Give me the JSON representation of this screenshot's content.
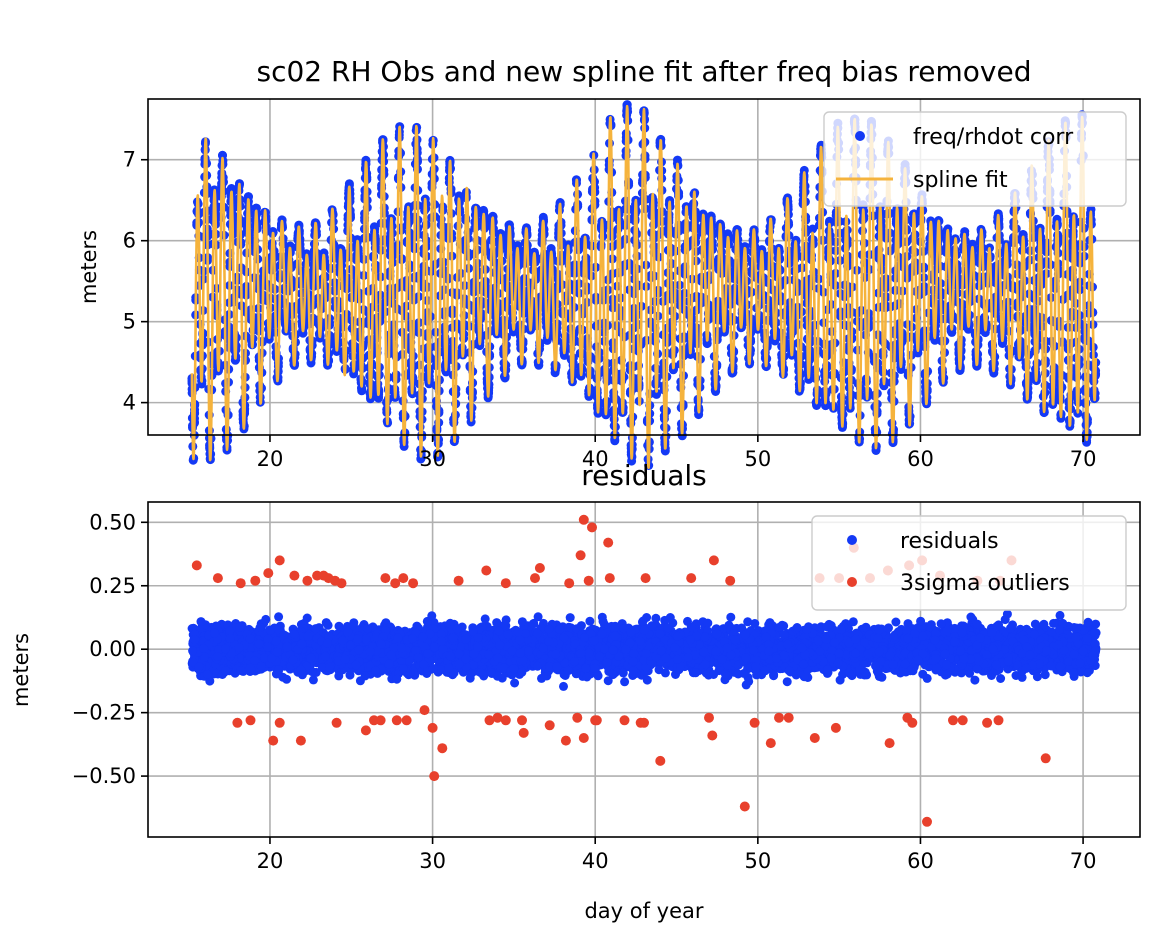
{
  "colors": {
    "obs": "#1439f5",
    "spline": "#f5b33c",
    "residuals": "#1439f5",
    "outliers": "#e8402c",
    "grid": "#b0b0b0"
  },
  "chart_data": [
    {
      "type": "scatter",
      "title": "sc02 RH Obs and new spline fit after freq bias removed",
      "xlabel": "",
      "ylabel": "meters",
      "xlim": [
        12.5,
        73.5
      ],
      "ylim": [
        3.6,
        7.75
      ],
      "xticks": [
        "20",
        "30",
        "40",
        "50",
        "60",
        "70"
      ],
      "yticks": [
        "4",
        "5",
        "6",
        "7"
      ],
      "grid": true,
      "legend_position": "top-right",
      "series": [
        {
          "name": "freq/rhdot corr",
          "kind": "points",
          "x_range": [
            15.2,
            70.8
          ],
          "y_range": [
            3.8,
            7.55
          ],
          "approx_count": 4500
        },
        {
          "name": "spline fit",
          "kind": "line",
          "x_range": [
            15.2,
            70.8
          ],
          "y_range": [
            4.05,
            7.45
          ]
        }
      ]
    },
    {
      "type": "scatter",
      "title": "residuals",
      "xlabel": "day of year",
      "ylabel": "meters",
      "xlim": [
        12.5,
        73.5
      ],
      "ylim": [
        -0.74,
        0.58
      ],
      "xticks": [
        "20",
        "30",
        "40",
        "50",
        "60",
        "70"
      ],
      "yticks": [
        "0.50",
        "0.25",
        "0.00",
        "−0.25",
        "−0.50"
      ],
      "grid": true,
      "legend_position": "top-right",
      "series": [
        {
          "name": "residuals",
          "kind": "points",
          "x_range": [
            15.2,
            70.8
          ],
          "y_range": [
            -0.25,
            0.25
          ],
          "approx_count": 6000
        },
        {
          "name": "3sigma outliers",
          "kind": "points",
          "x": [
            15.5,
            16.8,
            18.0,
            18.2,
            18.8,
            19.1,
            19.9,
            20.2,
            20.6,
            20.6,
            21.5,
            21.9,
            22.3,
            22.9,
            23.3,
            23.6,
            24.0,
            24.1,
            24.4,
            25.9,
            26.4,
            26.8,
            27.1,
            27.7,
            27.8,
            28.2,
            28.4,
            28.8,
            29.5,
            30.0,
            30.1,
            30.6,
            31.6,
            33.3,
            33.5,
            34.0,
            34.5,
            34.5,
            35.5,
            35.6,
            36.3,
            36.6,
            37.2,
            38.2,
            38.4,
            38.9,
            39.1,
            39.3,
            39.3,
            39.6,
            39.8,
            40.0,
            40.1,
            40.8,
            40.9,
            41.8,
            42.8,
            43.0,
            43.1,
            44.0,
            45.9,
            47.0,
            47.2,
            47.3,
            48.3,
            49.2,
            49.8,
            50.8,
            51.3,
            51.9,
            53.5,
            53.8,
            54.8,
            55.0,
            55.9,
            56.9,
            58.0,
            58.1,
            59.2,
            59.3,
            59.5,
            60.1,
            60.4,
            61.2,
            62.0,
            62.6,
            63.5,
            64.1,
            64.8,
            64.9,
            65.6,
            67.7
          ],
          "y": [
            0.33,
            0.28,
            -0.29,
            0.26,
            -0.28,
            0.27,
            0.3,
            -0.36,
            0.35,
            -0.29,
            0.29,
            -0.36,
            0.27,
            0.29,
            0.29,
            0.28,
            0.27,
            -0.29,
            0.26,
            -0.32,
            -0.28,
            -0.28,
            0.28,
            0.26,
            -0.28,
            0.28,
            -0.28,
            0.26,
            -0.24,
            -0.31,
            -0.5,
            -0.39,
            0.27,
            0.31,
            -0.28,
            -0.27,
            0.26,
            -0.28,
            -0.28,
            -0.33,
            0.28,
            0.32,
            -0.3,
            -0.36,
            0.26,
            -0.27,
            0.37,
            0.51,
            -0.35,
            0.27,
            0.48,
            -0.28,
            -0.28,
            0.42,
            0.28,
            -0.28,
            -0.29,
            -0.29,
            0.28,
            -0.44,
            0.28,
            -0.27,
            -0.34,
            0.35,
            0.27,
            -0.62,
            -0.29,
            -0.37,
            -0.27,
            -0.27,
            -0.35,
            0.28,
            -0.31,
            0.28,
            0.4,
            0.28,
            0.31,
            -0.37,
            -0.27,
            0.33,
            -0.29,
            0.35,
            -0.68,
            0.29,
            -0.28,
            -0.28,
            0.27,
            -0.29,
            -0.28,
            0.27,
            0.35,
            -0.43
          ]
        }
      ]
    }
  ]
}
